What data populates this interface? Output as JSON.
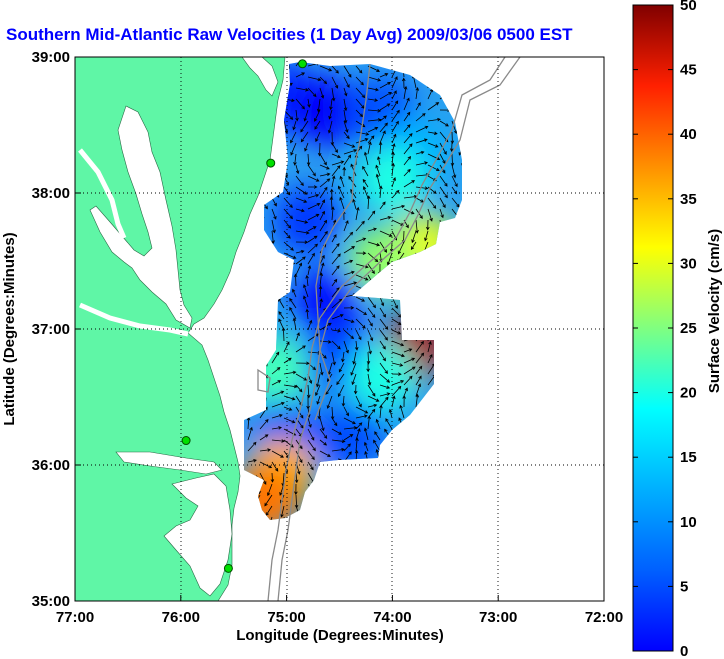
{
  "chart_data": {
    "type": "heatmap",
    "title": "Southern Mid-Atlantic Raw Velocities (1 Day Avg) 2009/03/06 0500 EST",
    "xlabel": "Longitude (Degrees:Minutes)",
    "ylabel": "Latitude (Degrees:Minutes)",
    "x_ticks": [
      {
        "value": -77,
        "label": "77:00"
      },
      {
        "value": -76,
        "label": "76:00"
      },
      {
        "value": -75,
        "label": "75:00"
      },
      {
        "value": -74,
        "label": "74:00"
      },
      {
        "value": -73,
        "label": "73:00"
      },
      {
        "value": -72,
        "label": "72:00"
      }
    ],
    "y_ticks": [
      {
        "value": 35,
        "label": "35:00"
      },
      {
        "value": 36,
        "label": "36:00"
      },
      {
        "value": 37,
        "label": "37:00"
      },
      {
        "value": 38,
        "label": "38:00"
      },
      {
        "value": 39,
        "label": "39:00"
      }
    ],
    "xlim": [
      -77,
      -72
    ],
    "ylim": [
      35,
      39
    ],
    "grid": true,
    "colorbar": {
      "label": "Surface Velocity (cm/s)",
      "range": [
        0,
        50
      ],
      "colormap": "jet",
      "ticks": [
        0,
        5,
        10,
        15,
        20,
        25,
        30,
        35,
        40,
        45,
        50
      ]
    },
    "land_color": "#5ff6a6",
    "radar_sites": [
      {
        "lon": -74.85,
        "lat": 38.95
      },
      {
        "lon": -75.15,
        "lat": 38.22
      },
      {
        "lon": -75.95,
        "lat": 36.18
      },
      {
        "lon": -75.55,
        "lat": 35.24
      }
    ],
    "velocity_regions": [
      {
        "lon": -75.0,
        "lat": 38.7,
        "speed": 8
      },
      {
        "lon": -74.6,
        "lat": 38.6,
        "speed": 6
      },
      {
        "lon": -74.1,
        "lat": 38.6,
        "speed": 10
      },
      {
        "lon": -73.8,
        "lat": 38.3,
        "speed": 15
      },
      {
        "lon": -74.0,
        "lat": 38.1,
        "speed": 20
      },
      {
        "lon": -73.7,
        "lat": 37.6,
        "speed": 30
      },
      {
        "lon": -74.1,
        "lat": 37.5,
        "speed": 26
      },
      {
        "lon": -74.8,
        "lat": 37.8,
        "speed": 9
      },
      {
        "lon": -74.6,
        "lat": 37.2,
        "speed": 7
      },
      {
        "lon": -74.5,
        "lat": 36.8,
        "speed": 9
      },
      {
        "lon": -73.8,
        "lat": 36.85,
        "speed": 48
      },
      {
        "lon": -74.1,
        "lat": 36.65,
        "speed": 20
      },
      {
        "lon": -75.1,
        "lat": 36.7,
        "speed": 22
      },
      {
        "lon": -75.0,
        "lat": 36.2,
        "speed": 10
      },
      {
        "lon": -75.05,
        "lat": 35.95,
        "speed": 35
      },
      {
        "lon": -75.2,
        "lat": 35.75,
        "speed": 38
      },
      {
        "lon": -74.4,
        "lat": 36.2,
        "speed": 10
      }
    ]
  }
}
